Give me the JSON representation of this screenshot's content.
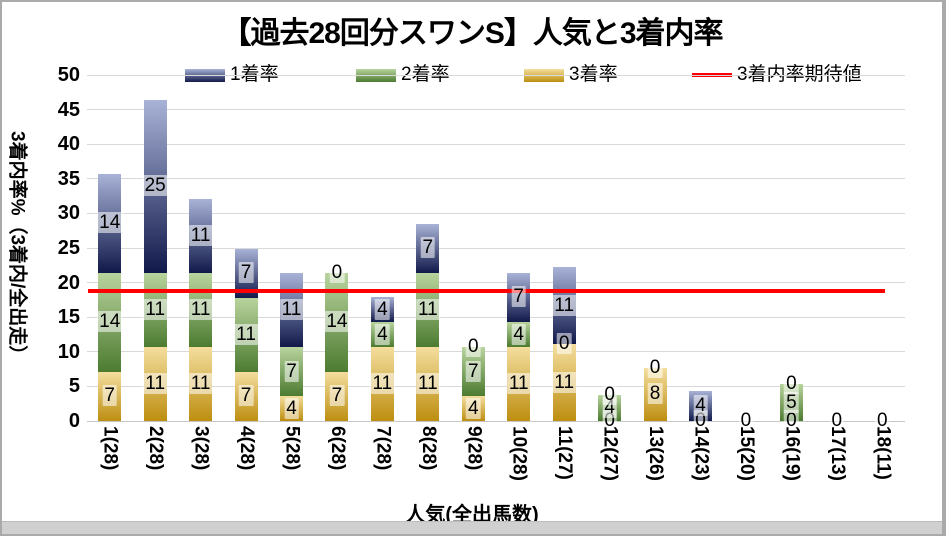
{
  "title": "【過去28回分スワンS】人気と3着内率",
  "legend": [
    {
      "label": "1着率",
      "type": "box",
      "color_top": "#a9b3d7",
      "color_bottom": "#10194a"
    },
    {
      "label": "2着率",
      "type": "box",
      "color_top": "#b9d49e",
      "color_bottom": "#4c7b30"
    },
    {
      "label": "3着率",
      "type": "box",
      "color_top": "#f4de9e",
      "color_bottom": "#bd8e10"
    },
    {
      "label": "3着内率期待値",
      "type": "line",
      "color": "#ff0000"
    }
  ],
  "chart_data": {
    "type": "bar",
    "stacked": true,
    "title": "【過去28回分スワンS】人気と3着内率",
    "xlabel": "人気(全出馬数)",
    "ylabel": "3着内率%（3着内/全出走）",
    "ylim": [
      0,
      50
    ],
    "yticks": [
      0,
      5,
      10,
      15,
      20,
      25,
      30,
      35,
      40,
      45,
      50
    ],
    "grid": true,
    "legend_position": "top",
    "categories": [
      "1(28)",
      "2(28)",
      "3(28)",
      "4(28)",
      "5(28)",
      "6(28)",
      "7(28)",
      "8(28)",
      "9(28)",
      "10(28)",
      "11(27)",
      "12(27)",
      "13(26)",
      "14(23)",
      "15(20)",
      "16(19)",
      "17(13)",
      "18(11)"
    ],
    "series": [
      {
        "name": "3着率",
        "color_top": "#f4de9e",
        "color_bottom": "#bd8e10",
        "values": [
          7.1,
          10.7,
          10.7,
          7.1,
          3.6,
          7.1,
          10.7,
          10.7,
          3.6,
          10.7,
          11.1,
          0,
          7.7,
          0,
          0,
          0,
          0,
          0
        ],
        "labels": [
          "7",
          "11",
          "11",
          "7",
          "4",
          "7",
          "11",
          "11",
          "4",
          "11",
          "11",
          "0",
          "8",
          "0",
          "0",
          "0",
          "0",
          "0"
        ]
      },
      {
        "name": "2着率",
        "color_top": "#b9d49e",
        "color_bottom": "#4c7b30",
        "values": [
          14.3,
          10.7,
          10.7,
          10.7,
          7.1,
          14.3,
          3.6,
          10.7,
          7.1,
          3.6,
          0,
          3.7,
          0,
          0,
          0,
          5.3,
          0,
          0
        ],
        "labels": [
          "14",
          "11",
          "11",
          "11",
          "7",
          "14",
          "4",
          "11",
          "7",
          "4",
          "0",
          "4",
          "",
          "",
          "",
          "5",
          "",
          ""
        ]
      },
      {
        "name": "1着率",
        "color_top": "#a9b3d7",
        "color_bottom": "#10194a",
        "values": [
          14.3,
          25,
          10.7,
          7.1,
          10.7,
          0,
          3.6,
          7.1,
          0,
          7.1,
          11.1,
          0,
          0,
          4.3,
          0,
          0,
          0,
          0
        ],
        "labels": [
          "14",
          "25",
          "11",
          "7",
          "11",
          "0",
          "4",
          "7",
          "0",
          "7",
          "11",
          "0",
          "0",
          "4",
          "",
          "0",
          "",
          ""
        ]
      }
    ],
    "reference_line": {
      "name": "3着内率期待値",
      "value": 18.8,
      "color": "#ff0000"
    }
  }
}
